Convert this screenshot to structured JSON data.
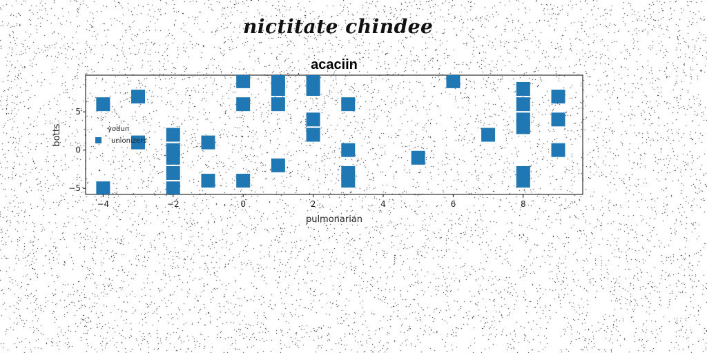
{
  "page": {
    "title": "nictitate chindee"
  },
  "chart_data": {
    "type": "scatter",
    "title": "acaciin",
    "xlabel": "pulmonarian",
    "ylabel": "botts",
    "xlim": [
      -4.5,
      9.7
    ],
    "ylim": [
      -5.8,
      9.8
    ],
    "xticks": [
      -4,
      -2,
      0,
      2,
      4,
      6,
      8
    ],
    "yticks": [
      -5,
      0,
      5
    ],
    "grid": false,
    "legend": {
      "title": "yodun",
      "placement": "center-left"
    },
    "series": [
      {
        "name": "unionizers",
        "color": "#1f77b4",
        "marker": "square",
        "points": [
          [
            -4,
            6
          ],
          [
            -4,
            -5
          ],
          [
            -3,
            7
          ],
          [
            -3,
            1
          ],
          [
            -2,
            2
          ],
          [
            -2,
            0
          ],
          [
            -2,
            -1
          ],
          [
            -2,
            -3
          ],
          [
            -2,
            -5
          ],
          [
            -1,
            1
          ],
          [
            -1,
            -4
          ],
          [
            0,
            9
          ],
          [
            0,
            6
          ],
          [
            0,
            -4
          ],
          [
            1,
            9
          ],
          [
            1,
            8
          ],
          [
            1,
            6
          ],
          [
            1,
            -2
          ],
          [
            2,
            9
          ],
          [
            2,
            8
          ],
          [
            2,
            4
          ],
          [
            2,
            2
          ],
          [
            3,
            6
          ],
          [
            3,
            0
          ],
          [
            3,
            -3
          ],
          [
            3,
            -4
          ],
          [
            5,
            -1
          ],
          [
            6,
            9
          ],
          [
            7,
            2
          ],
          [
            8,
            8
          ],
          [
            8,
            6
          ],
          [
            8,
            4
          ],
          [
            8,
            3
          ],
          [
            8,
            -3
          ],
          [
            8,
            -4
          ],
          [
            9,
            7
          ],
          [
            9,
            4
          ],
          [
            9,
            0
          ]
        ]
      }
    ]
  }
}
